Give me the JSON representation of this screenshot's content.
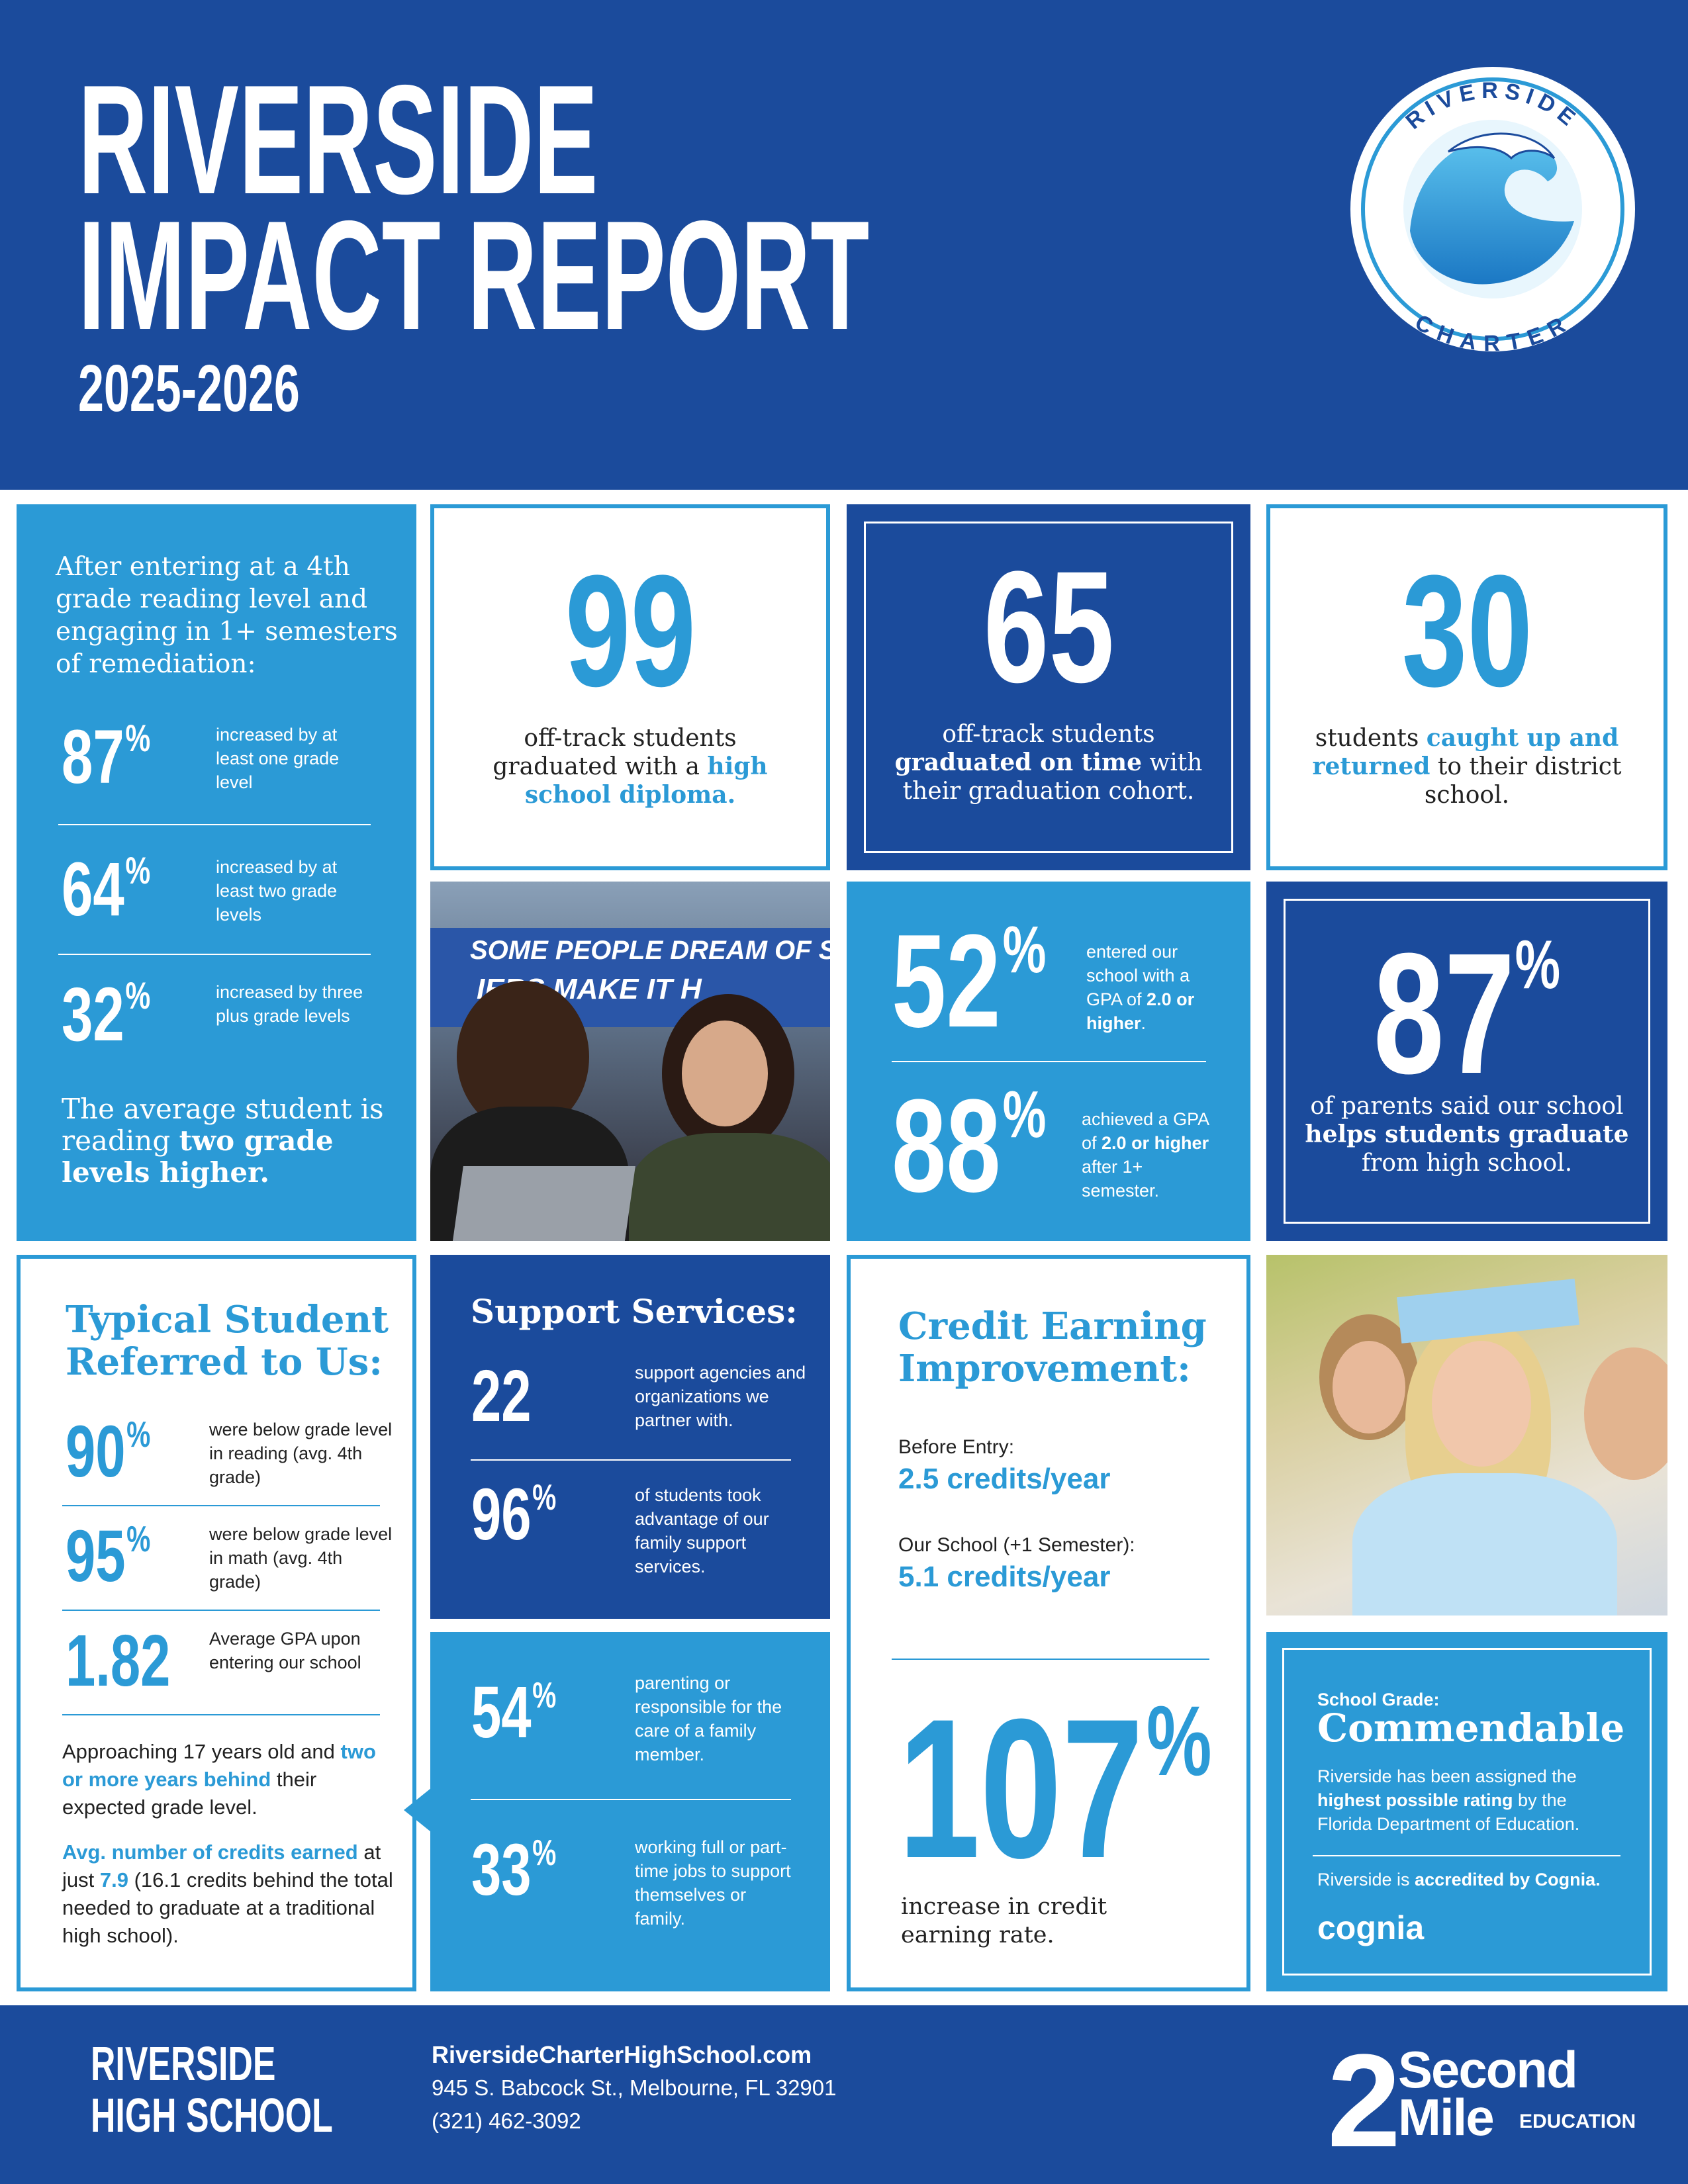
{
  "header": {
    "title": [
      "RIVERSIDE",
      "IMPACT REPORT"
    ],
    "year": "2025-2026",
    "logo": {
      "top": "RIVERSIDE",
      "bottom": "CHARTER"
    }
  },
  "reading": {
    "intro": "After entering at a 4th grade reading level and engaging in 1+ semesters of remediation:",
    "stats": [
      {
        "value": 87,
        "unit": "%",
        "text": "increased by at least one grade level"
      },
      {
        "value": 64,
        "unit": "%",
        "text": "increased by at least two grade levels"
      },
      {
        "value": 32,
        "unit": "%",
        "text": "increased by three plus grade levels"
      }
    ],
    "summary": [
      "The average student is reading ",
      "two grade levels higher."
    ]
  },
  "diploma": {
    "value": 99,
    "caption": [
      "off-track students graduated with a ",
      "high school diploma."
    ]
  },
  "on_time": {
    "value": 65,
    "caption": [
      "off-track students ",
      "graduated on time",
      " with their graduation cohort."
    ]
  },
  "returned": {
    "value": 30,
    "caption": [
      "students ",
      "caught up and returned",
      " to their district school."
    ]
  },
  "photo": {
    "banner": [
      "SOME PEOPLE DREAM OF SU",
      "IERS MAKE IT H"
    ]
  },
  "gpa": {
    "stats": [
      {
        "value": 52,
        "unit": "%",
        "text": [
          "entered our school with a GPA of ",
          "2.0 or higher",
          "."
        ]
      },
      {
        "value": 88,
        "unit": "%",
        "text": [
          "achieved a GPA of ",
          "2.0 or higher",
          " after 1+ semester."
        ]
      }
    ]
  },
  "parents": {
    "value": 87,
    "unit": "%",
    "caption": [
      "of parents said our school ",
      "helps students graduate",
      " from high school."
    ]
  },
  "typical": {
    "heading": "Typical Student Referred to Us:",
    "stats": [
      {
        "value": 90,
        "unit": "%",
        "text": "were below grade level in reading (avg. 4th grade)"
      },
      {
        "value": 95,
        "unit": "%",
        "text": "were below grade level in math (avg. 4th grade)"
      },
      {
        "value": 1.82,
        "text": "Average GPA upon entering our school"
      }
    ],
    "age": [
      "Approaching 17 years old and ",
      "two or more years behind",
      " their expected grade level."
    ],
    "credits": [
      "Avg. number of credits earned",
      " at just ",
      7.9,
      " (16.1 credits behind the total needed to graduate at a traditional high school)."
    ]
  },
  "support": {
    "heading": "Support Services:",
    "stats": [
      {
        "value": 22,
        "text": "support agencies and organizations we partner with."
      },
      {
        "value": 96,
        "unit": "%",
        "text": "of students took advantage of our family support services."
      }
    ]
  },
  "family": {
    "stats": [
      {
        "value": 54,
        "unit": "%",
        "text": "parenting or responsible for the care of a family member."
      },
      {
        "value": 33,
        "unit": "%",
        "text": "working full or part-time jobs to support themselves or family."
      }
    ]
  },
  "credit": {
    "heading": "Credit Earning Improvement:",
    "before_label": "Before Entry:",
    "before": "2.5 credits/year",
    "after_label": "Our School (+1 Semester):",
    "after": "5.1 credits/year",
    "value": 107,
    "unit": "%",
    "caption": "increase in credit earning rate."
  },
  "grade": {
    "label": "School Grade:",
    "grade": "Commendable",
    "note": [
      "Riverside has been assigned the ",
      "highest possible rating",
      " by the Florida Department of Education."
    ],
    "accreditation": [
      "Riverside is ",
      "accredited by Cognia."
    ],
    "logo": "cognia"
  },
  "footer": {
    "school": [
      "RIVERSIDE",
      "HIGH SCHOOL"
    ],
    "url": "RiversideCharterHighSchool.com",
    "address": "945 S. Babcock St., Melbourne, FL 32901",
    "phone": "(321) 462-3092",
    "brand": {
      "mark": "2",
      "name": [
        "Second",
        "Mile"
      ],
      "tag": "EDUCATION"
    }
  }
}
